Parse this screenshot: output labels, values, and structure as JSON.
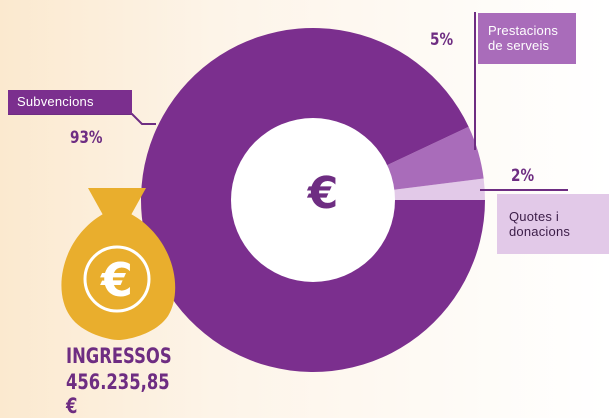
{
  "chart_data": {
    "type": "pie",
    "title": "",
    "center_symbol": "€",
    "slices": [
      {
        "label": "Subvencions",
        "value": 93,
        "value_label": "93%",
        "color": "#7b2f8e"
      },
      {
        "label": "Prestacions de serveis",
        "value": 5,
        "value_label": "5%",
        "color": "#a96cba"
      },
      {
        "label": "Quotes i donacions",
        "value": 2,
        "value_label": "2%",
        "color": "#e2c9e8"
      }
    ]
  },
  "labels": {
    "subvencions": "Subvencions",
    "prestacions_line1": "Prestacions",
    "prestacions_line2": "de serveis",
    "quotes_line1": "Quotes i",
    "quotes_line2": "donacions"
  },
  "total": {
    "title": "INGRESSOS",
    "value": "456.235,85 €",
    "bag_symbol": "€"
  },
  "colors": {
    "purple": "#6e2d82",
    "bag_gold": "#e9ae2d",
    "bag_symbol": "#ffffff"
  }
}
